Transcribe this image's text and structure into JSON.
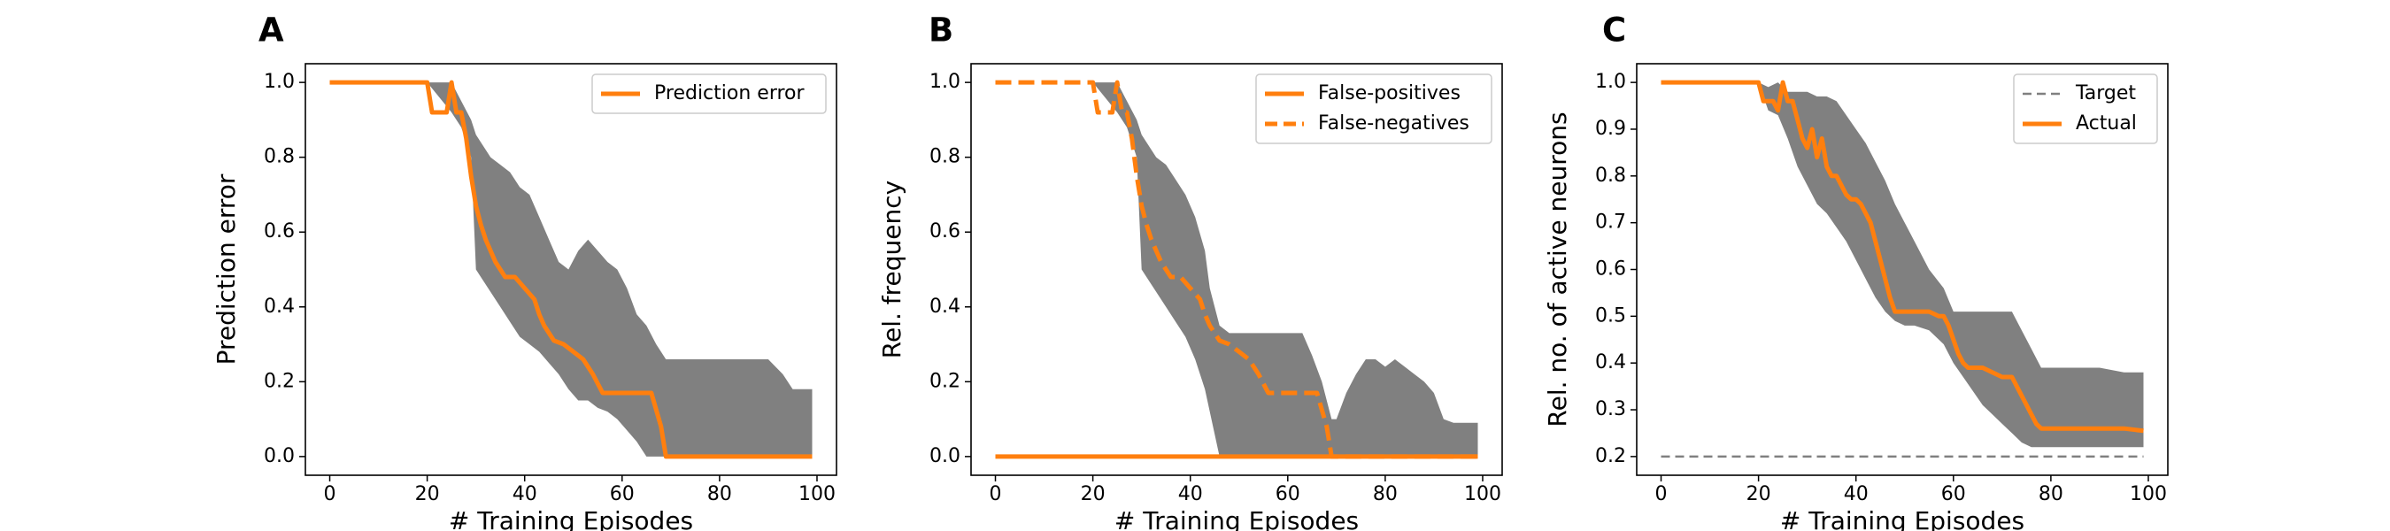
{
  "colors": {
    "actual": "#ff7f0e",
    "band": "#808080",
    "target": "#808080",
    "axes": "#000000",
    "legend_border": "#cccccc"
  },
  "chart_data": [
    {
      "type": "line",
      "panel_label": "A",
      "xlabel": "# Training Episodes",
      "ylabel": "Prediction error",
      "xlim": [
        -5,
        104
      ],
      "ylim": [
        -0.05,
        1.05
      ],
      "xticks": [
        "0",
        "20",
        "40",
        "60",
        "80",
        "100"
      ],
      "xtick_values": [
        0,
        20,
        40,
        60,
        80,
        100
      ],
      "yticks": [
        "0.0",
        "0.2",
        "0.4",
        "0.6",
        "0.8",
        "1.0"
      ],
      "ytick_values": [
        0,
        0.2,
        0.4,
        0.6,
        0.8,
        1.0
      ],
      "grid": false,
      "legend_position": "top-right",
      "series": [
        {
          "name": "Prediction error",
          "style": "solid",
          "x": [
            0,
            20,
            21,
            24,
            25,
            26,
            27,
            28,
            29,
            30,
            31,
            32,
            33,
            34,
            35,
            36,
            37,
            38,
            40,
            42,
            43,
            44,
            45,
            46,
            48,
            50,
            52,
            54,
            56,
            60,
            62,
            64,
            66,
            68,
            69,
            70,
            80,
            90,
            99
          ],
          "y": [
            1.0,
            1.0,
            0.92,
            0.92,
            1.0,
            0.92,
            0.92,
            0.85,
            0.75,
            0.67,
            0.62,
            0.58,
            0.55,
            0.52,
            0.5,
            0.48,
            0.48,
            0.48,
            0.45,
            0.42,
            0.38,
            0.35,
            0.33,
            0.31,
            0.3,
            0.28,
            0.26,
            0.22,
            0.17,
            0.17,
            0.17,
            0.17,
            0.17,
            0.08,
            0.0,
            0.0,
            0.0,
            0.0,
            0.0
          ]
        }
      ],
      "band": {
        "x": [
          20,
          25,
          27,
          29,
          30,
          31,
          33,
          35,
          37,
          39,
          41,
          43,
          45,
          47,
          49,
          51,
          53,
          55,
          57,
          59,
          61,
          63,
          65,
          67,
          69,
          71,
          73,
          75,
          77,
          80,
          85,
          90,
          93,
          95,
          97,
          99
        ],
        "upper": [
          1.0,
          1.0,
          0.95,
          0.9,
          0.86,
          0.84,
          0.8,
          0.78,
          0.76,
          0.72,
          0.7,
          0.64,
          0.58,
          0.52,
          0.5,
          0.55,
          0.58,
          0.55,
          0.52,
          0.5,
          0.45,
          0.38,
          0.35,
          0.3,
          0.26,
          0.26,
          0.26,
          0.26,
          0.26,
          0.26,
          0.26,
          0.26,
          0.22,
          0.18,
          0.18,
          0.18
        ],
        "lower": [
          1.0,
          0.92,
          0.88,
          0.8,
          0.5,
          0.48,
          0.44,
          0.4,
          0.36,
          0.32,
          0.3,
          0.28,
          0.25,
          0.22,
          0.18,
          0.15,
          0.15,
          0.13,
          0.12,
          0.1,
          0.07,
          0.04,
          0.0,
          0.0,
          0.0,
          0.0,
          0.0,
          0.0,
          0.0,
          0.0,
          0.0,
          0.0,
          0.0,
          0.0,
          0.0,
          0.0
        ]
      }
    },
    {
      "type": "line",
      "panel_label": "B",
      "xlabel": "# Training Episodes",
      "ylabel": "Rel. frequency",
      "xlim": [
        -5,
        104
      ],
      "ylim": [
        -0.05,
        1.05
      ],
      "xticks": [
        "0",
        "20",
        "40",
        "60",
        "80",
        "100"
      ],
      "xtick_values": [
        0,
        20,
        40,
        60,
        80,
        100
      ],
      "yticks": [
        "0.0",
        "0.2",
        "0.4",
        "0.6",
        "0.8",
        "1.0"
      ],
      "ytick_values": [
        0,
        0.2,
        0.4,
        0.6,
        0.8,
        1.0
      ],
      "grid": false,
      "legend_position": "top-right",
      "series": [
        {
          "name": "False-positives",
          "style": "solid",
          "x": [
            0,
            99
          ],
          "y": [
            0.0,
            0.0
          ]
        },
        {
          "name": "False-negatives",
          "style": "dashed",
          "x": [
            0,
            20,
            21,
            24,
            25,
            26,
            27,
            28,
            29,
            30,
            31,
            32,
            33,
            34,
            35,
            36,
            37,
            38,
            40,
            42,
            43,
            44,
            45,
            46,
            48,
            50,
            52,
            54,
            56,
            60,
            62,
            64,
            66,
            68,
            69,
            70,
            80,
            90,
            99
          ],
          "y": [
            1.0,
            1.0,
            0.92,
            0.92,
            1.0,
            0.92,
            0.92,
            0.85,
            0.75,
            0.67,
            0.62,
            0.58,
            0.55,
            0.52,
            0.5,
            0.48,
            0.48,
            0.48,
            0.45,
            0.42,
            0.38,
            0.35,
            0.33,
            0.31,
            0.3,
            0.28,
            0.26,
            0.22,
            0.17,
            0.17,
            0.17,
            0.17,
            0.17,
            0.08,
            0.0,
            0.0,
            0.0,
            0.0,
            0.0
          ]
        }
      ],
      "band": {
        "x": [
          20,
          25,
          27,
          29,
          30,
          31,
          33,
          35,
          37,
          39,
          41,
          43,
          44,
          45,
          46,
          48,
          50,
          55,
          60,
          63,
          65,
          67,
          69,
          70,
          72,
          74,
          76,
          78,
          80,
          82,
          84,
          86,
          88,
          90,
          92,
          94,
          96,
          99
        ],
        "upper": [
          1.0,
          1.0,
          0.95,
          0.9,
          0.86,
          0.84,
          0.8,
          0.78,
          0.74,
          0.7,
          0.64,
          0.55,
          0.45,
          0.4,
          0.35,
          0.33,
          0.33,
          0.33,
          0.33,
          0.33,
          0.27,
          0.2,
          0.1,
          0.1,
          0.17,
          0.22,
          0.26,
          0.26,
          0.24,
          0.26,
          0.24,
          0.22,
          0.2,
          0.17,
          0.1,
          0.09,
          0.09,
          0.09
        ],
        "lower": [
          1.0,
          0.92,
          0.88,
          0.8,
          0.5,
          0.48,
          0.44,
          0.4,
          0.36,
          0.32,
          0.26,
          0.18,
          0.12,
          0.06,
          0.0,
          0.0,
          0.0,
          0.0,
          0.0,
          0.0,
          0.0,
          0.0,
          0.0,
          0.0,
          0.0,
          0.0,
          0.0,
          0.0,
          0.0,
          0.0,
          0.0,
          0.0,
          0.0,
          0.0,
          0.0,
          0.0,
          0.0,
          0.0
        ]
      }
    },
    {
      "type": "line",
      "panel_label": "C",
      "xlabel": "# Training Episodes",
      "ylabel": "Rel. no. of active neurons",
      "xlim": [
        -5,
        104
      ],
      "ylim": [
        0.16,
        1.04
      ],
      "xticks": [
        "0",
        "20",
        "40",
        "60",
        "80",
        "100"
      ],
      "xtick_values": [
        0,
        20,
        40,
        60,
        80,
        100
      ],
      "yticks": [
        "0.2",
        "0.3",
        "0.4",
        "0.5",
        "0.6",
        "0.7",
        "0.8",
        "0.9",
        "1.0"
      ],
      "ytick_values": [
        0.2,
        0.3,
        0.4,
        0.5,
        0.6,
        0.7,
        0.8,
        0.9,
        1.0
      ],
      "grid": false,
      "legend_position": "top-right",
      "series": [
        {
          "name": "Target",
          "style": "dashed",
          "x": [
            0,
            99
          ],
          "y": [
            0.2,
            0.2
          ]
        },
        {
          "name": "Actual",
          "style": "solid",
          "x": [
            0,
            20,
            21,
            23,
            24,
            25,
            26,
            27,
            28,
            29,
            30,
            31,
            32,
            33,
            34,
            35,
            36,
            37,
            38,
            39,
            40,
            41,
            42,
            43,
            44,
            45,
            46,
            47,
            48,
            50,
            52,
            55,
            57,
            58,
            59,
            60,
            61,
            62,
            63,
            64,
            66,
            68,
            70,
            71,
            72,
            74,
            76,
            77,
            78,
            80,
            85,
            90,
            95,
            99
          ],
          "y": [
            1.0,
            1.0,
            0.96,
            0.96,
            0.94,
            1.0,
            0.96,
            0.96,
            0.92,
            0.88,
            0.86,
            0.9,
            0.84,
            0.88,
            0.82,
            0.8,
            0.8,
            0.78,
            0.76,
            0.75,
            0.75,
            0.74,
            0.72,
            0.7,
            0.66,
            0.62,
            0.58,
            0.54,
            0.51,
            0.51,
            0.51,
            0.51,
            0.5,
            0.5,
            0.48,
            0.45,
            0.42,
            0.4,
            0.39,
            0.39,
            0.39,
            0.38,
            0.37,
            0.37,
            0.37,
            0.33,
            0.29,
            0.27,
            0.26,
            0.26,
            0.26,
            0.26,
            0.26,
            0.255
          ]
        }
      ],
      "band": {
        "x": [
          20,
          22,
          24,
          26,
          28,
          30,
          32,
          34,
          36,
          38,
          40,
          42,
          44,
          46,
          48,
          50,
          52,
          55,
          58,
          60,
          62,
          64,
          66,
          68,
          70,
          72,
          74,
          76,
          78,
          80,
          85,
          90,
          95,
          99
        ],
        "upper": [
          1.0,
          0.99,
          1.0,
          0.98,
          0.98,
          0.98,
          0.97,
          0.97,
          0.96,
          0.93,
          0.9,
          0.87,
          0.83,
          0.79,
          0.74,
          0.7,
          0.66,
          0.6,
          0.56,
          0.51,
          0.51,
          0.51,
          0.51,
          0.51,
          0.51,
          0.51,
          0.47,
          0.43,
          0.39,
          0.39,
          0.39,
          0.39,
          0.38,
          0.38
        ],
        "lower": [
          1.0,
          0.94,
          0.93,
          0.88,
          0.82,
          0.78,
          0.74,
          0.72,
          0.69,
          0.66,
          0.62,
          0.58,
          0.54,
          0.51,
          0.49,
          0.48,
          0.48,
          0.47,
          0.44,
          0.4,
          0.37,
          0.34,
          0.31,
          0.29,
          0.27,
          0.25,
          0.23,
          0.22,
          0.22,
          0.22,
          0.22,
          0.22,
          0.22,
          0.22
        ]
      }
    }
  ]
}
